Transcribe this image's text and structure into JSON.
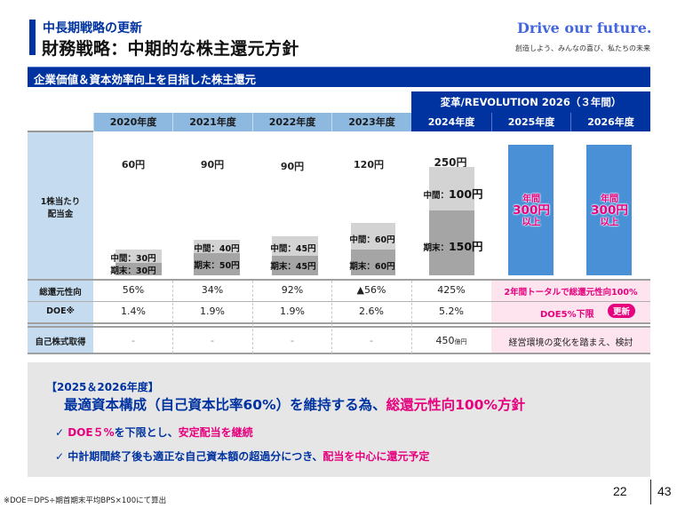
{
  "header": {
    "subtitle": "中長期戦略の更新",
    "title": "財務戦略：中期的な株主還元方針",
    "logo": "Drive our future.",
    "tagline": "創造しよう、みんなの喜び、私たちの未来",
    "band": "企業価値＆資本効率向上を目指した株主還元"
  },
  "table": {
    "revolution_header": "変革/REVOLUTION 2026（３年間）",
    "years": [
      "2020年度",
      "2021年度",
      "2022年度",
      "2023年度",
      "2024年度",
      "2025年度",
      "2026年度"
    ],
    "row_labels": {
      "dividend_line1": "1株当たり",
      "dividend_line2": "配当金",
      "payout": "総還元性向",
      "doe": "DOE※",
      "buyback": "自己株式取得"
    },
    "dividends": [
      {
        "total": "60円",
        "interim": "中間：30円",
        "final": "期末：30円"
      },
      {
        "total": "90円",
        "interim": "中間：40円",
        "final": "期末：50円"
      },
      {
        "total": "90円",
        "interim": "中間：45円",
        "final": "期末：45円"
      },
      {
        "total": "120円",
        "interim": "中間：60円",
        "final": "期末：60円"
      },
      {
        "total": "250円",
        "interim_label": "中間：",
        "interim_value": "100円",
        "final_label": "期末：",
        "final_value": "150円"
      }
    ],
    "future_dividend": {
      "line1": "年間",
      "line2": "300円",
      "line3": "以上"
    },
    "payout": [
      "56%",
      "34%",
      "92%",
      "▲56%",
      "425%"
    ],
    "payout_future": "2年間トータルで総還元性向100%",
    "doe": [
      "1.4%",
      "1.9%",
      "1.9%",
      "2.6%",
      "5.2%"
    ],
    "doe_future": "DOE5%下限",
    "doe_badge": "更新",
    "buyback": [
      "-",
      "-",
      "-",
      "-"
    ],
    "buyback_2024_value": "450",
    "buyback_2024_unit": "億円",
    "buyback_future": "経営環境の変化を踏まえ、検討"
  },
  "policy": {
    "heading": "【2025＆2026年度】",
    "main_part1": "最適資本構成（自己資本比率60%）を維持する為、",
    "main_part2": "総還元性向100%方針",
    "item1_check": "✓",
    "item1_part1": "DOE５%",
    "item1_part2": "を下限とし、",
    "item1_part3": "安定配当を継続",
    "item2_check": "✓",
    "item2_part1": "中計期間終了後も適正な自己資本額の超過分につき、",
    "item2_part2": "配当を中心に還元予定"
  },
  "footer": {
    "note": "※DOE＝DPS÷期首期末平均BPS×100にて算出",
    "page": "22",
    "total_pages": "43"
  },
  "colors": {
    "brand_blue": "#0033a0",
    "accent_pink": "#e6007e",
    "header_light_blue": "#8db8e0",
    "label_blue": "#c5dcf0",
    "future_bar_blue": "#4a90d6"
  }
}
